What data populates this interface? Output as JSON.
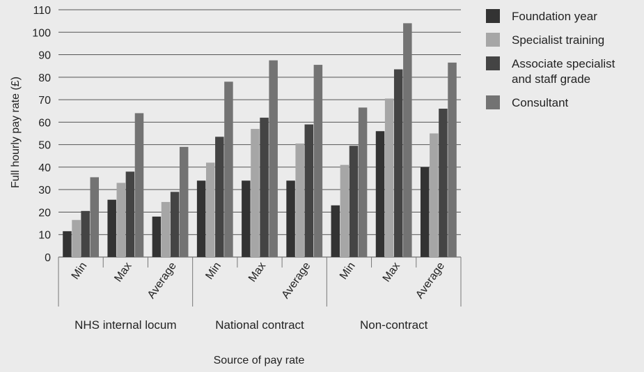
{
  "chart_data": {
    "type": "bar",
    "xlabel": "Source of pay rate",
    "ylabel": "Full hourly pay rate (£)",
    "ylim": [
      0,
      110
    ],
    "yticks": [
      0,
      10,
      20,
      30,
      40,
      50,
      60,
      70,
      80,
      90,
      100,
      110
    ],
    "grid": true,
    "legend_position": "right",
    "groups": [
      {
        "label": "NHS internal locum",
        "categories": [
          "Min",
          "Max",
          "Average"
        ]
      },
      {
        "label": "National contract",
        "categories": [
          "Min",
          "Max",
          "Average"
        ]
      },
      {
        "label": "Non-contract",
        "categories": [
          "Min",
          "Max",
          "Average"
        ]
      }
    ],
    "series": [
      {
        "name": "Foundation year",
        "legend_lines": [
          "Foundation year"
        ],
        "color": "#333333",
        "values": [
          11.5,
          25.5,
          18,
          34,
          34,
          34,
          23,
          56,
          40
        ]
      },
      {
        "name": "Specialist training",
        "legend_lines": [
          "Specialist training"
        ],
        "color": "#a6a6a6",
        "values": [
          16.5,
          33,
          24.5,
          42,
          57,
          50.5,
          41,
          70.5,
          55
        ]
      },
      {
        "name": "Associate specialist and staff grade",
        "legend_lines": [
          "Associate specialist",
          "and staff grade"
        ],
        "color": "#444444",
        "values": [
          20.5,
          38,
          29,
          53.5,
          62,
          59,
          49.5,
          83.5,
          66
        ]
      },
      {
        "name": "Consultant",
        "legend_lines": [
          "Consultant"
        ],
        "color": "#737373",
        "values": [
          35.5,
          64,
          49,
          78,
          87.5,
          85.5,
          66.5,
          104,
          86.5
        ]
      }
    ]
  }
}
